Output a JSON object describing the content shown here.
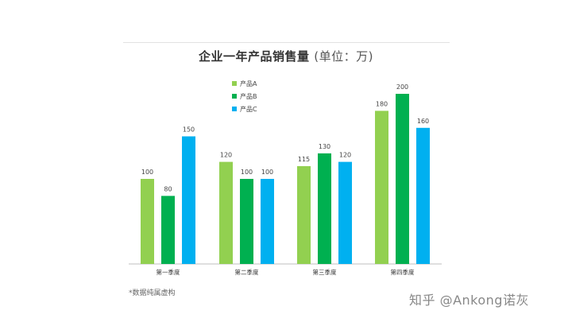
{
  "chart_data": {
    "type": "bar",
    "title": "企业一年产品销售量",
    "unit_label": "(单位：万)",
    "categories": [
      "第一季度",
      "第二季度",
      "第三季度",
      "第四季度"
    ],
    "series": [
      {
        "name": "产品A",
        "color": "#92d050",
        "values": [
          100,
          120,
          115,
          180
        ]
      },
      {
        "name": "产品B",
        "color": "#00b050",
        "values": [
          80,
          100,
          130,
          200
        ]
      },
      {
        "name": "产品C",
        "color": "#00b0f0",
        "values": [
          150,
          100,
          120,
          160
        ]
      }
    ],
    "ylim": [
      0,
      200
    ],
    "grid": false,
    "legend_position": "top-left",
    "data_labels": true
  },
  "footnote": "*数据纯属虚构",
  "watermark": "知乎 @Ankong诺灰"
}
